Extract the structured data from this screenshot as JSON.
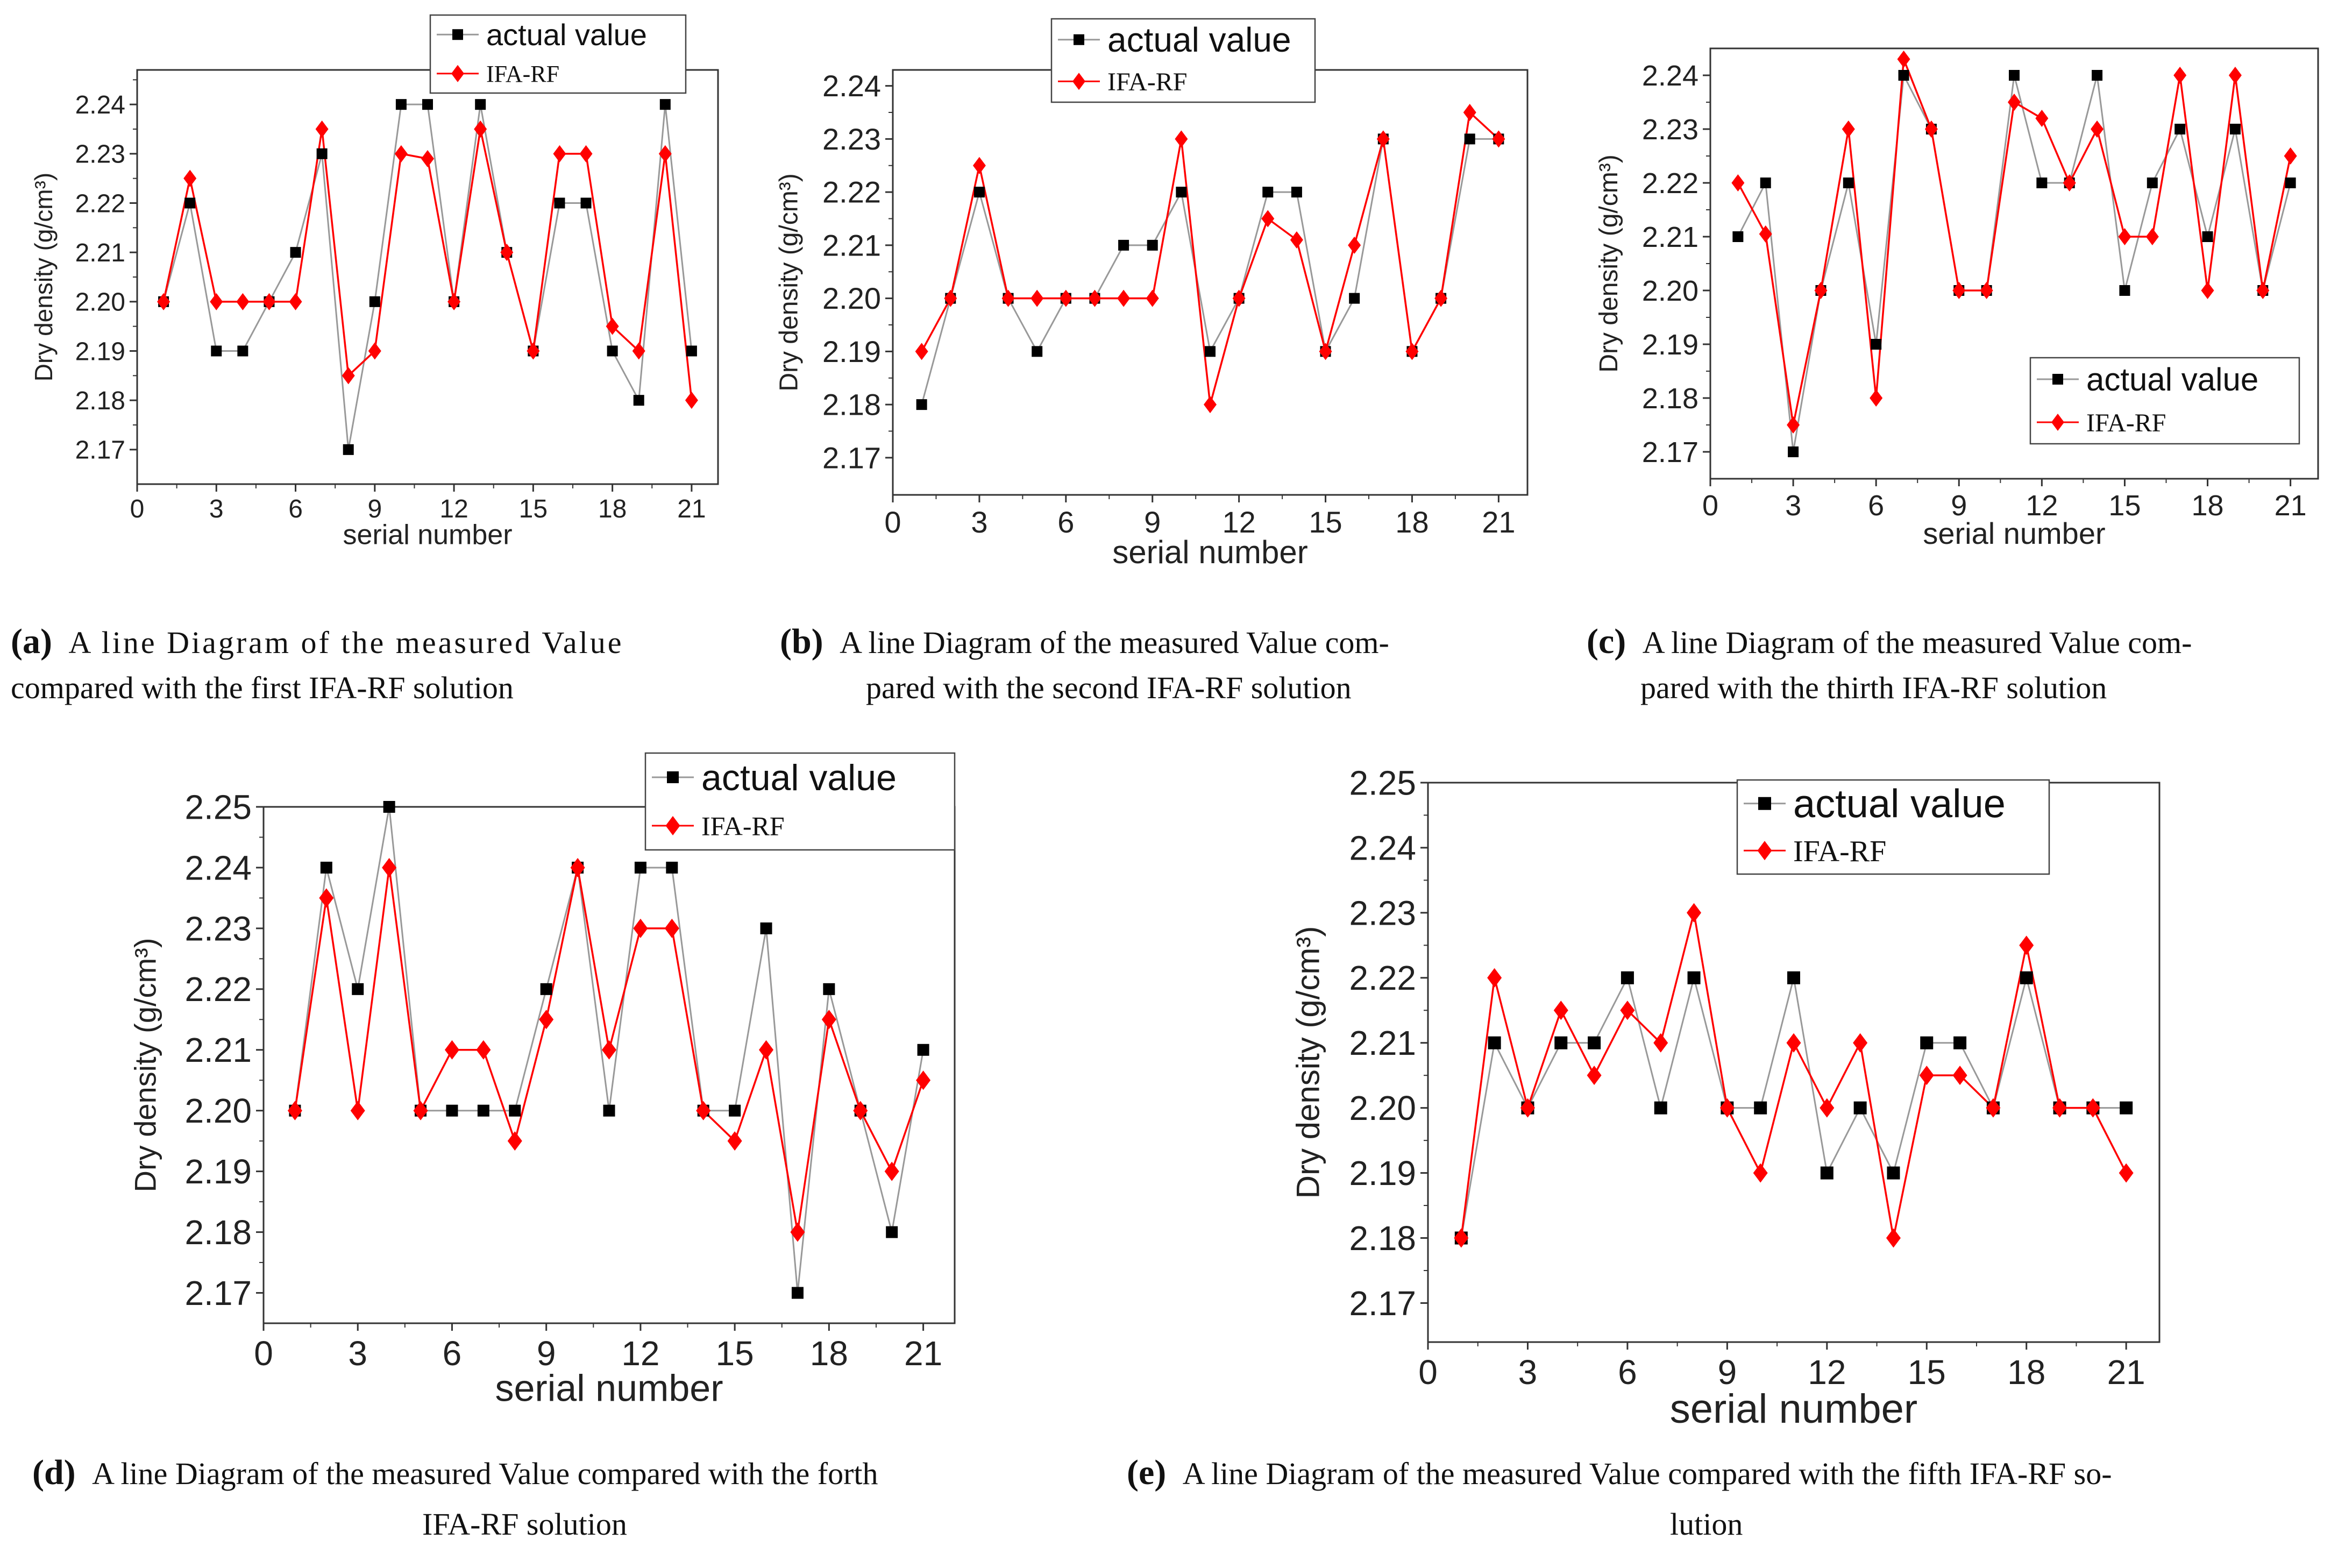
{
  "chart_data": [
    {
      "id": "a",
      "type": "line",
      "xlabel": "serial number",
      "ylabel": "Dry density (g/cm³)",
      "x": [
        1,
        2,
        3,
        4,
        5,
        6,
        7,
        8,
        9,
        10,
        11,
        12,
        13,
        14,
        15,
        16,
        17,
        18,
        19,
        20,
        21
      ],
      "xlim": [
        0,
        22
      ],
      "xticks": [
        0,
        3,
        6,
        9,
        12,
        15,
        18,
        21
      ],
      "ylim": [
        2.163,
        2.247
      ],
      "yticks": [
        "2.17",
        "2.18",
        "2.19",
        "2.20",
        "2.21",
        "2.22",
        "2.23",
        "2.24"
      ],
      "legend_position": "top-center",
      "series": [
        {
          "name": "actual value",
          "color": "#999999",
          "marker": "square",
          "marker_color": "#000000",
          "values": [
            2.2,
            2.22,
            2.19,
            2.19,
            2.2,
            2.21,
            2.23,
            2.17,
            2.2,
            2.24,
            2.24,
            2.2,
            2.24,
            2.21,
            2.19,
            2.22,
            2.22,
            2.19,
            2.18,
            2.24,
            2.19
          ]
        },
        {
          "name": "IFA-RF",
          "color": "#ff0000",
          "marker": "diamond",
          "marker_color": "#ff0000",
          "values": [
            2.2,
            2.225,
            2.2,
            2.2,
            2.2,
            2.2,
            2.235,
            2.185,
            2.19,
            2.23,
            2.229,
            2.2,
            2.235,
            2.21,
            2.19,
            2.23,
            2.23,
            2.195,
            2.19,
            2.23,
            2.18
          ]
        }
      ],
      "caption": {
        "letter": "(a)",
        "lines": [
          "A line Diagram of the measured Value",
          "compared with the first IFA-RF solution"
        ]
      }
    },
    {
      "id": "b",
      "type": "line",
      "xlabel": "serial number",
      "ylabel": "Dry density (g/cm³)",
      "x": [
        1,
        2,
        3,
        4,
        5,
        6,
        7,
        8,
        9,
        10,
        11,
        12,
        13,
        14,
        15,
        16,
        17,
        18,
        19,
        20,
        21
      ],
      "xlim": [
        0,
        22
      ],
      "xticks": [
        0,
        3,
        6,
        9,
        12,
        15,
        18,
        21
      ],
      "ylim": [
        2.163,
        2.243
      ],
      "yticks": [
        "2.17",
        "2.18",
        "2.19",
        "2.20",
        "2.21",
        "2.22",
        "2.23",
        "2.24"
      ],
      "legend_position": "top-center",
      "series": [
        {
          "name": "actual value",
          "color": "#999999",
          "marker": "square",
          "marker_color": "#000000",
          "values": [
            2.18,
            2.2,
            2.22,
            2.2,
            2.19,
            2.2,
            2.2,
            2.21,
            2.21,
            2.22,
            2.19,
            2.2,
            2.22,
            2.22,
            2.19,
            2.2,
            2.23,
            2.19,
            2.2,
            2.23,
            2.23
          ]
        },
        {
          "name": "IFA-RF",
          "color": "#ff0000",
          "marker": "diamond",
          "marker_color": "#ff0000",
          "values": [
            2.19,
            2.2,
            2.225,
            2.2,
            2.2,
            2.2,
            2.2,
            2.2,
            2.2,
            2.23,
            2.18,
            2.2,
            2.215,
            2.211,
            2.19,
            2.21,
            2.23,
            2.19,
            2.2,
            2.235,
            2.23
          ]
        }
      ],
      "caption": {
        "letter": "(b)",
        "lines": [
          "A line Diagram of the measured Value com-",
          "pared with the second IFA-RF solution"
        ]
      }
    },
    {
      "id": "c",
      "type": "line",
      "xlabel": "serial number",
      "ylabel": "Dry density (g/cm³)",
      "x": [
        1,
        2,
        3,
        4,
        5,
        6,
        7,
        8,
        9,
        10,
        11,
        12,
        13,
        14,
        15,
        16,
        17,
        18,
        19,
        20,
        21
      ],
      "xlim": [
        0,
        22
      ],
      "xticks": [
        0,
        3,
        6,
        9,
        12,
        15,
        18,
        21
      ],
      "ylim": [
        2.165,
        2.245
      ],
      "yticks": [
        "2.17",
        "2.18",
        "2.19",
        "2.20",
        "2.21",
        "2.22",
        "2.23",
        "2.24"
      ],
      "legend_position": "bottom-right",
      "series": [
        {
          "name": "actual value",
          "color": "#999999",
          "marker": "square",
          "marker_color": "#000000",
          "values": [
            2.21,
            2.22,
            2.17,
            2.2,
            2.22,
            2.19,
            2.24,
            2.23,
            2.2,
            2.2,
            2.24,
            2.22,
            2.22,
            2.24,
            2.2,
            2.22,
            2.23,
            2.21,
            2.23,
            2.2,
            2.22
          ]
        },
        {
          "name": "IFA-RF",
          "color": "#ff0000",
          "marker": "diamond",
          "marker_color": "#ff0000",
          "values": [
            2.22,
            2.2105,
            2.175,
            2.2,
            2.23,
            2.18,
            2.243,
            2.23,
            2.2,
            2.2,
            2.235,
            2.232,
            2.22,
            2.23,
            2.21,
            2.21,
            2.24,
            2.2,
            2.24,
            2.2,
            2.225
          ]
        }
      ],
      "caption": {
        "letter": "(c)",
        "lines": [
          "A line Diagram of the measured Value com-",
          "pared with the thirth IFA-RF solution"
        ]
      }
    },
    {
      "id": "d",
      "type": "line",
      "xlabel": "serial number",
      "ylabel": "Dry density (g/cm³)",
      "x": [
        1,
        2,
        3,
        4,
        5,
        6,
        7,
        8,
        9,
        10,
        11,
        12,
        13,
        14,
        15,
        16,
        17,
        18,
        19,
        20,
        21
      ],
      "xlim": [
        0,
        22
      ],
      "xticks": [
        0,
        3,
        6,
        9,
        12,
        15,
        18,
        21
      ],
      "ylim": [
        2.165,
        2.25
      ],
      "yticks": [
        "2.17",
        "2.18",
        "2.19",
        "2.20",
        "2.21",
        "2.22",
        "2.23",
        "2.24",
        "2.25"
      ],
      "legend_position": "top-right",
      "series": [
        {
          "name": "actual value",
          "color": "#999999",
          "marker": "square",
          "marker_color": "#000000",
          "values": [
            2.2,
            2.24,
            2.22,
            2.25,
            2.2,
            2.2,
            2.2,
            2.2,
            2.22,
            2.24,
            2.2,
            2.24,
            2.24,
            2.2,
            2.2,
            2.23,
            2.17,
            2.22,
            2.2,
            2.18,
            2.21
          ]
        },
        {
          "name": "IFA-RF",
          "color": "#ff0000",
          "marker": "diamond",
          "marker_color": "#ff0000",
          "values": [
            2.2,
            2.235,
            2.2,
            2.24,
            2.2,
            2.21,
            2.21,
            2.195,
            2.215,
            2.24,
            2.21,
            2.23,
            2.23,
            2.2,
            2.195,
            2.21,
            2.18,
            2.215,
            2.2,
            2.19,
            2.205
          ]
        }
      ],
      "caption": {
        "letter": "(d)",
        "lines": [
          "A line Diagram of the measured Value compared with the forth",
          "IFA-RF solution"
        ]
      }
    },
    {
      "id": "e",
      "type": "line",
      "xlabel": "serial number",
      "ylabel": "Dry density (g/cm³)",
      "x": [
        1,
        2,
        3,
        4,
        5,
        6,
        7,
        8,
        9,
        10,
        11,
        12,
        13,
        14,
        15,
        16,
        17,
        18,
        19,
        20,
        21
      ],
      "xlim": [
        0,
        22
      ],
      "xticks": [
        0,
        3,
        6,
        9,
        12,
        15,
        18,
        21
      ],
      "ylim": [
        2.164,
        2.25
      ],
      "yticks": [
        "2.17",
        "2.18",
        "2.19",
        "2.20",
        "2.21",
        "2.22",
        "2.23",
        "2.24",
        "2.25"
      ],
      "legend_position": "top-center",
      "series": [
        {
          "name": "actual value",
          "color": "#999999",
          "marker": "square",
          "marker_color": "#000000",
          "values": [
            2.18,
            2.21,
            2.2,
            2.21,
            2.21,
            2.22,
            2.2,
            2.22,
            2.2,
            2.2,
            2.22,
            2.19,
            2.2,
            2.19,
            2.21,
            2.21,
            2.2,
            2.22,
            2.2,
            2.2,
            2.2
          ]
        },
        {
          "name": "IFA-RF",
          "color": "#ff0000",
          "marker": "diamond",
          "marker_color": "#ff0000",
          "values": [
            2.18,
            2.22,
            2.2,
            2.215,
            2.205,
            2.215,
            2.21,
            2.23,
            2.2,
            2.19,
            2.21,
            2.2,
            2.21,
            2.18,
            2.205,
            2.205,
            2.2,
            2.225,
            2.2,
            2.2,
            2.19
          ]
        }
      ],
      "caption": {
        "letter": "(e)",
        "lines": [
          "A line Diagram of the measured Value compared with the fifth IFA-RF so-",
          "lution"
        ]
      }
    }
  ]
}
